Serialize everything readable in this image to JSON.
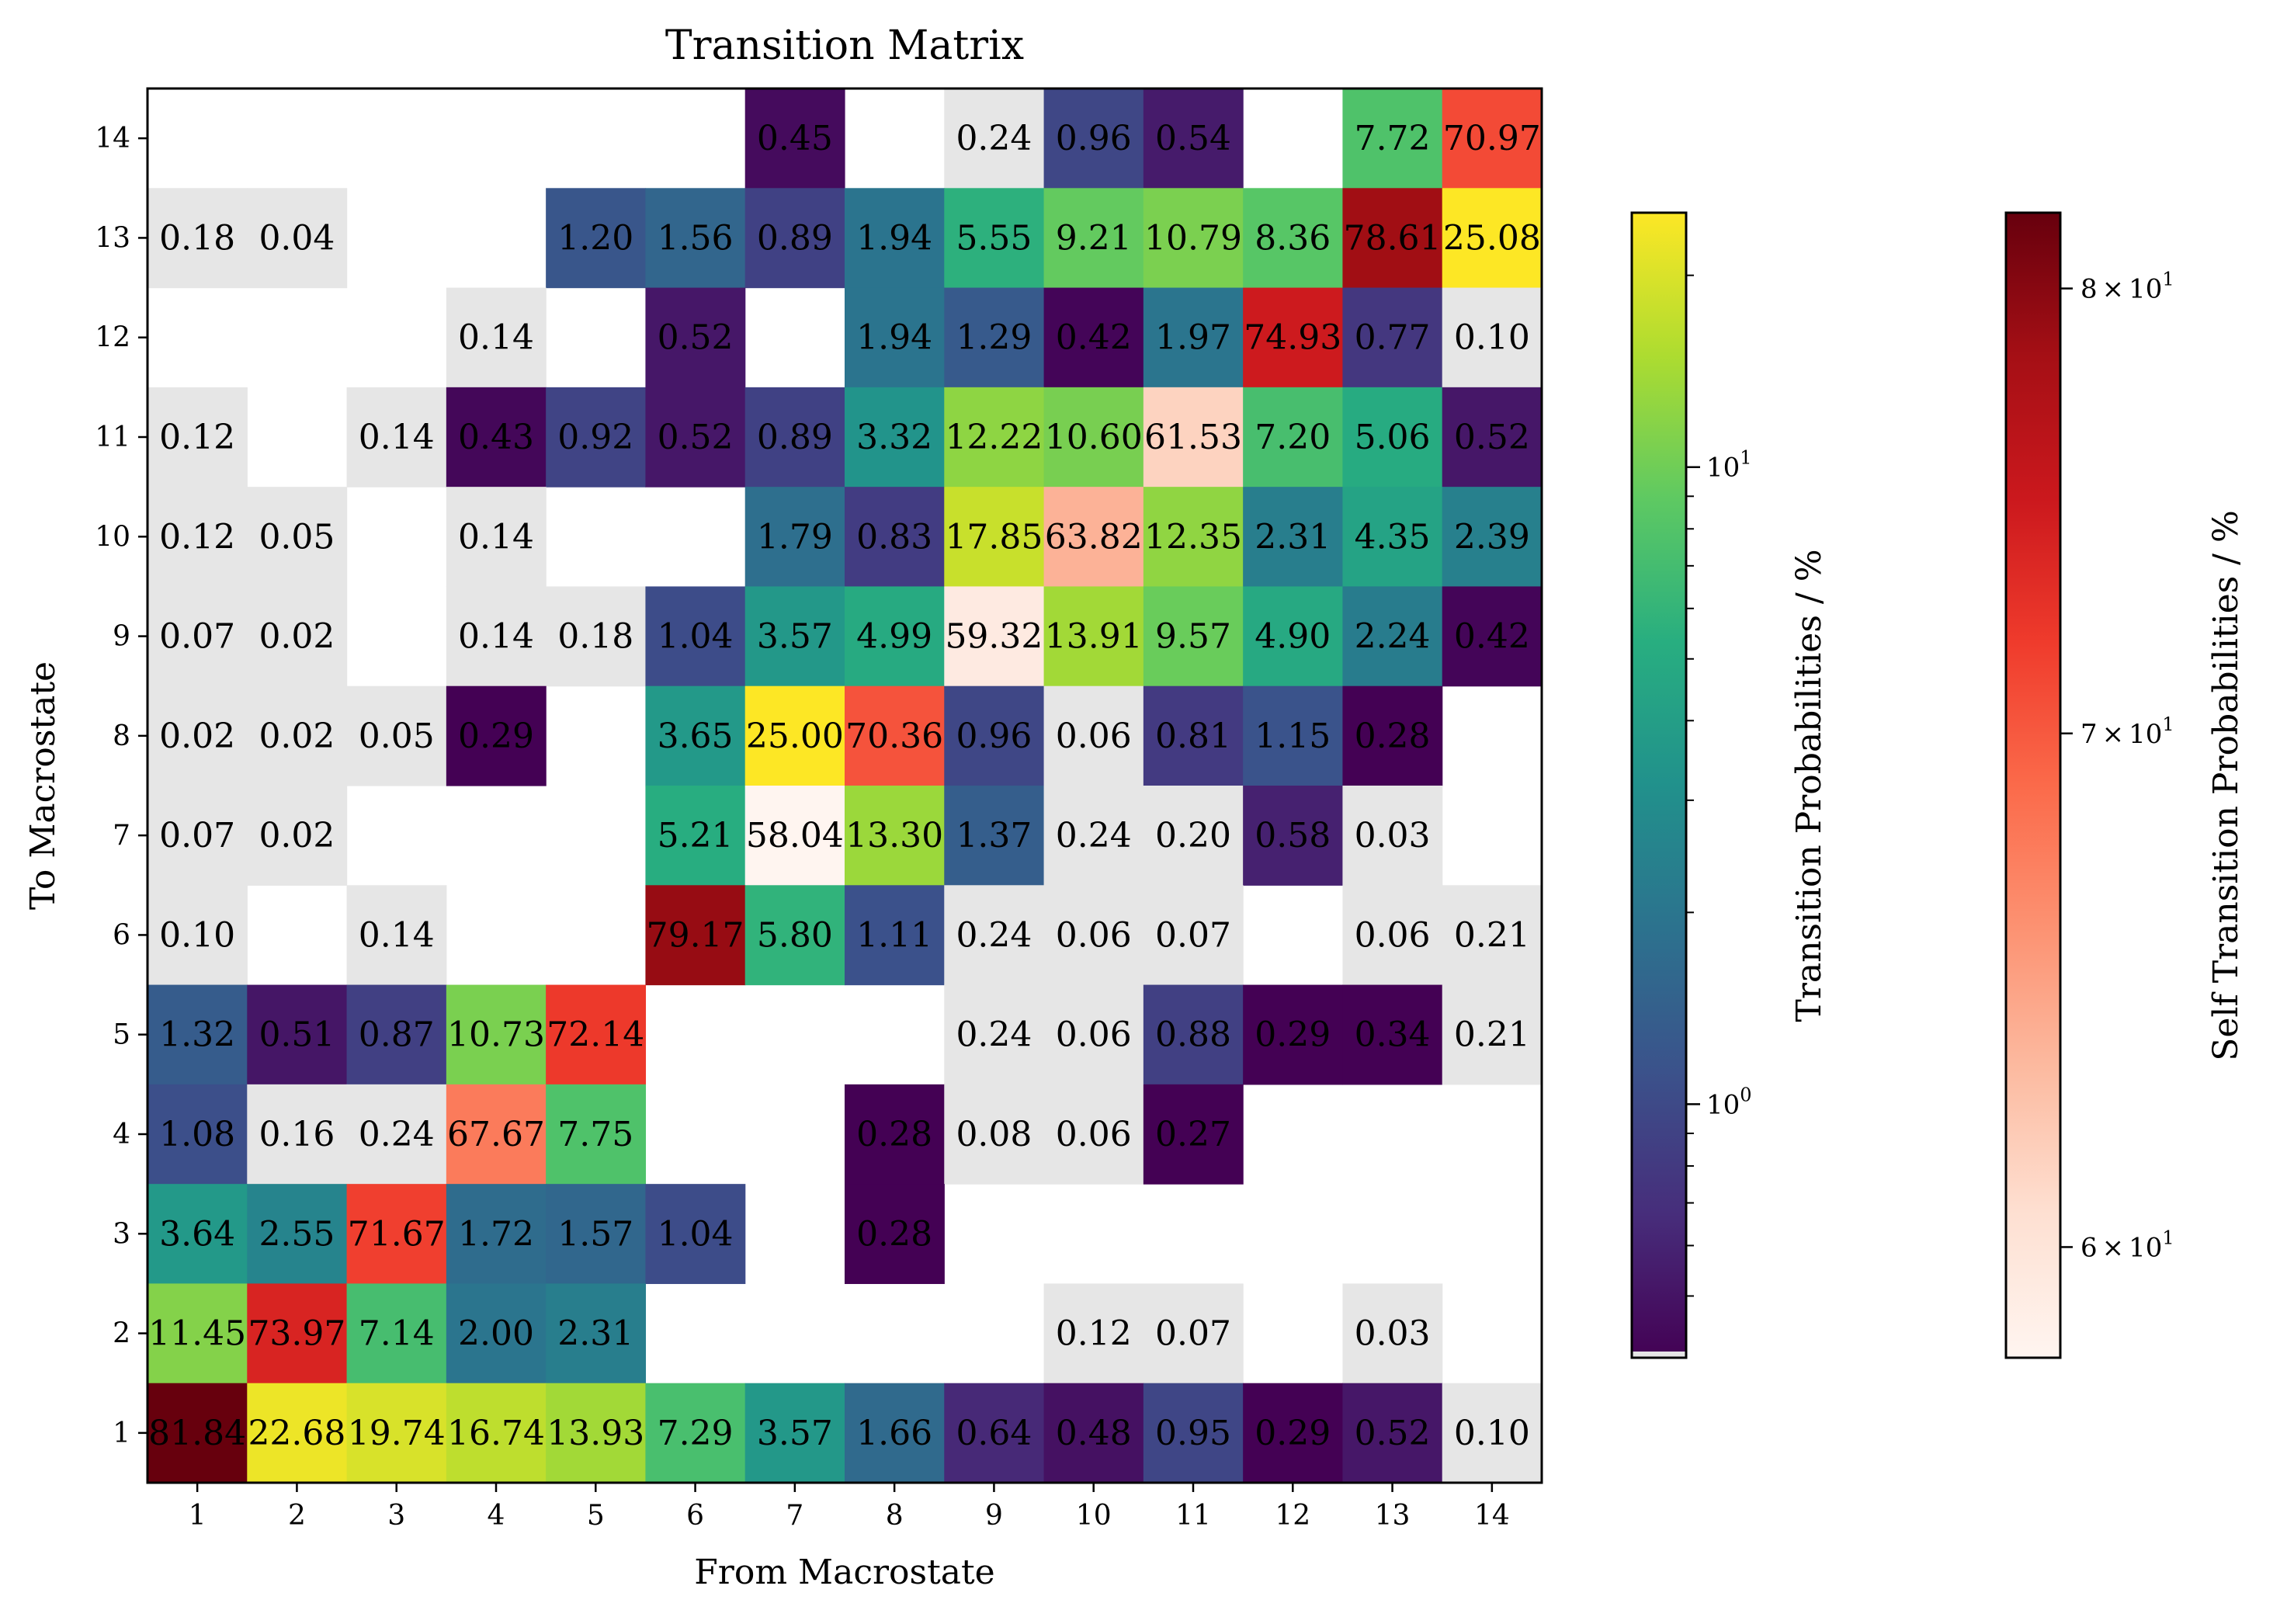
{
  "chart_data": {
    "type": "heatmap",
    "title": "Transition Matrix",
    "xlabel": "From Macrostate",
    "ylabel": "To Macrostate",
    "x_categories": [
      1,
      2,
      3,
      4,
      5,
      6,
      7,
      8,
      9,
      10,
      11,
      12,
      13,
      14
    ],
    "y_categories": [
      1,
      2,
      3,
      4,
      5,
      6,
      7,
      8,
      9,
      10,
      11,
      12,
      13,
      14
    ],
    "cells": [
      {
        "from": 7,
        "to": 14,
        "value": 0.45
      },
      {
        "from": 9,
        "to": 14,
        "value": 0.24
      },
      {
        "from": 10,
        "to": 14,
        "value": 0.96
      },
      {
        "from": 11,
        "to": 14,
        "value": 0.54
      },
      {
        "from": 13,
        "to": 14,
        "value": 7.72
      },
      {
        "from": 14,
        "to": 14,
        "value": 70.97
      },
      {
        "from": 1,
        "to": 13,
        "value": 0.18
      },
      {
        "from": 2,
        "to": 13,
        "value": 0.04
      },
      {
        "from": 5,
        "to": 13,
        "value": 1.2
      },
      {
        "from": 6,
        "to": 13,
        "value": 1.56
      },
      {
        "from": 7,
        "to": 13,
        "value": 0.89
      },
      {
        "from": 8,
        "to": 13,
        "value": 1.94
      },
      {
        "from": 9,
        "to": 13,
        "value": 5.55
      },
      {
        "from": 10,
        "to": 13,
        "value": 9.21
      },
      {
        "from": 11,
        "to": 13,
        "value": 10.79
      },
      {
        "from": 12,
        "to": 13,
        "value": 8.36
      },
      {
        "from": 13,
        "to": 13,
        "value": 78.61
      },
      {
        "from": 14,
        "to": 13,
        "value": 25.08
      },
      {
        "from": 4,
        "to": 12,
        "value": 0.14
      },
      {
        "from": 6,
        "to": 12,
        "value": 0.52
      },
      {
        "from": 8,
        "to": 12,
        "value": 1.94
      },
      {
        "from": 9,
        "to": 12,
        "value": 1.29
      },
      {
        "from": 10,
        "to": 12,
        "value": 0.42
      },
      {
        "from": 11,
        "to": 12,
        "value": 1.97
      },
      {
        "from": 12,
        "to": 12,
        "value": 74.93
      },
      {
        "from": 13,
        "to": 12,
        "value": 0.77
      },
      {
        "from": 14,
        "to": 12,
        "value": 0.1
      },
      {
        "from": 1,
        "to": 11,
        "value": 0.12
      },
      {
        "from": 3,
        "to": 11,
        "value": 0.14
      },
      {
        "from": 4,
        "to": 11,
        "value": 0.43
      },
      {
        "from": 5,
        "to": 11,
        "value": 0.92
      },
      {
        "from": 6,
        "to": 11,
        "value": 0.52
      },
      {
        "from": 7,
        "to": 11,
        "value": 0.89
      },
      {
        "from": 8,
        "to": 11,
        "value": 3.32
      },
      {
        "from": 9,
        "to": 11,
        "value": 12.22
      },
      {
        "from": 10,
        "to": 11,
        "value": 10.6
      },
      {
        "from": 11,
        "to": 11,
        "value": 61.53
      },
      {
        "from": 12,
        "to": 11,
        "value": 7.2
      },
      {
        "from": 13,
        "to": 11,
        "value": 5.06
      },
      {
        "from": 14,
        "to": 11,
        "value": 0.52
      },
      {
        "from": 1,
        "to": 10,
        "value": 0.12
      },
      {
        "from": 2,
        "to": 10,
        "value": 0.05
      },
      {
        "from": 4,
        "to": 10,
        "value": 0.14
      },
      {
        "from": 7,
        "to": 10,
        "value": 1.79
      },
      {
        "from": 8,
        "to": 10,
        "value": 0.83
      },
      {
        "from": 9,
        "to": 10,
        "value": 17.85
      },
      {
        "from": 10,
        "to": 10,
        "value": 63.82
      },
      {
        "from": 11,
        "to": 10,
        "value": 12.35
      },
      {
        "from": 12,
        "to": 10,
        "value": 2.31
      },
      {
        "from": 13,
        "to": 10,
        "value": 4.35
      },
      {
        "from": 14,
        "to": 10,
        "value": 2.39
      },
      {
        "from": 1,
        "to": 9,
        "value": 0.07
      },
      {
        "from": 2,
        "to": 9,
        "value": 0.02
      },
      {
        "from": 4,
        "to": 9,
        "value": 0.14
      },
      {
        "from": 5,
        "to": 9,
        "value": 0.18
      },
      {
        "from": 6,
        "to": 9,
        "value": 1.04
      },
      {
        "from": 7,
        "to": 9,
        "value": 3.57
      },
      {
        "from": 8,
        "to": 9,
        "value": 4.99
      },
      {
        "from": 9,
        "to": 9,
        "value": 59.32
      },
      {
        "from": 10,
        "to": 9,
        "value": 13.91
      },
      {
        "from": 11,
        "to": 9,
        "value": 9.57
      },
      {
        "from": 12,
        "to": 9,
        "value": 4.9
      },
      {
        "from": 13,
        "to": 9,
        "value": 2.24
      },
      {
        "from": 14,
        "to": 9,
        "value": 0.42
      },
      {
        "from": 1,
        "to": 8,
        "value": 0.02
      },
      {
        "from": 2,
        "to": 8,
        "value": 0.02
      },
      {
        "from": 3,
        "to": 8,
        "value": 0.05
      },
      {
        "from": 4,
        "to": 8,
        "value": 0.29
      },
      {
        "from": 6,
        "to": 8,
        "value": 3.65
      },
      {
        "from": 7,
        "to": 8,
        "value": 25.0
      },
      {
        "from": 8,
        "to": 8,
        "value": 70.36
      },
      {
        "from": 9,
        "to": 8,
        "value": 0.96
      },
      {
        "from": 10,
        "to": 8,
        "value": 0.06
      },
      {
        "from": 11,
        "to": 8,
        "value": 0.81
      },
      {
        "from": 12,
        "to": 8,
        "value": 1.15
      },
      {
        "from": 13,
        "to": 8,
        "value": 0.28
      },
      {
        "from": 1,
        "to": 7,
        "value": 0.07
      },
      {
        "from": 2,
        "to": 7,
        "value": 0.02
      },
      {
        "from": 6,
        "to": 7,
        "value": 5.21
      },
      {
        "from": 7,
        "to": 7,
        "value": 58.04
      },
      {
        "from": 8,
        "to": 7,
        "value": 13.3
      },
      {
        "from": 9,
        "to": 7,
        "value": 1.37
      },
      {
        "from": 10,
        "to": 7,
        "value": 0.24
      },
      {
        "from": 11,
        "to": 7,
        "value": 0.2
      },
      {
        "from": 12,
        "to": 7,
        "value": 0.58
      },
      {
        "from": 13,
        "to": 7,
        "value": 0.03
      },
      {
        "from": 1,
        "to": 6,
        "value": 0.1
      },
      {
        "from": 3,
        "to": 6,
        "value": 0.14
      },
      {
        "from": 6,
        "to": 6,
        "value": 79.17
      },
      {
        "from": 7,
        "to": 6,
        "value": 5.8
      },
      {
        "from": 8,
        "to": 6,
        "value": 1.11
      },
      {
        "from": 9,
        "to": 6,
        "value": 0.24
      },
      {
        "from": 10,
        "to": 6,
        "value": 0.06
      },
      {
        "from": 11,
        "to": 6,
        "value": 0.07
      },
      {
        "from": 13,
        "to": 6,
        "value": 0.06
      },
      {
        "from": 14,
        "to": 6,
        "value": 0.21
      },
      {
        "from": 1,
        "to": 5,
        "value": 1.32
      },
      {
        "from": 2,
        "to": 5,
        "value": 0.51
      },
      {
        "from": 3,
        "to": 5,
        "value": 0.87
      },
      {
        "from": 4,
        "to": 5,
        "value": 10.73
      },
      {
        "from": 5,
        "to": 5,
        "value": 72.14
      },
      {
        "from": 9,
        "to": 5,
        "value": 0.24
      },
      {
        "from": 10,
        "to": 5,
        "value": 0.06
      },
      {
        "from": 11,
        "to": 5,
        "value": 0.88
      },
      {
        "from": 12,
        "to": 5,
        "value": 0.29
      },
      {
        "from": 13,
        "to": 5,
        "value": 0.34
      },
      {
        "from": 14,
        "to": 5,
        "value": 0.21
      },
      {
        "from": 1,
        "to": 4,
        "value": 1.08
      },
      {
        "from": 2,
        "to": 4,
        "value": 0.16
      },
      {
        "from": 3,
        "to": 4,
        "value": 0.24
      },
      {
        "from": 4,
        "to": 4,
        "value": 67.67
      },
      {
        "from": 5,
        "to": 4,
        "value": 7.75
      },
      {
        "from": 8,
        "to": 4,
        "value": 0.28
      },
      {
        "from": 9,
        "to": 4,
        "value": 0.08
      },
      {
        "from": 10,
        "to": 4,
        "value": 0.06
      },
      {
        "from": 11,
        "to": 4,
        "value": 0.27
      },
      {
        "from": 1,
        "to": 3,
        "value": 3.64
      },
      {
        "from": 2,
        "to": 3,
        "value": 2.55
      },
      {
        "from": 3,
        "to": 3,
        "value": 71.67
      },
      {
        "from": 4,
        "to": 3,
        "value": 1.72
      },
      {
        "from": 5,
        "to": 3,
        "value": 1.57
      },
      {
        "from": 6,
        "to": 3,
        "value": 1.04
      },
      {
        "from": 8,
        "to": 3,
        "value": 0.28
      },
      {
        "from": 1,
        "to": 2,
        "value": 11.45
      },
      {
        "from": 2,
        "to": 2,
        "value": 73.97
      },
      {
        "from": 3,
        "to": 2,
        "value": 7.14
      },
      {
        "from": 4,
        "to": 2,
        "value": 2.0
      },
      {
        "from": 5,
        "to": 2,
        "value": 2.31
      },
      {
        "from": 10,
        "to": 2,
        "value": 0.12
      },
      {
        "from": 11,
        "to": 2,
        "value": 0.07
      },
      {
        "from": 13,
        "to": 2,
        "value": 0.03
      },
      {
        "from": 1,
        "to": 1,
        "value": 81.84
      },
      {
        "from": 2,
        "to": 1,
        "value": 22.68
      },
      {
        "from": 3,
        "to": 1,
        "value": 19.74
      },
      {
        "from": 4,
        "to": 1,
        "value": 16.74
      },
      {
        "from": 5,
        "to": 1,
        "value": 13.93
      },
      {
        "from": 6,
        "to": 1,
        "value": 7.29
      },
      {
        "from": 7,
        "to": 1,
        "value": 3.57
      },
      {
        "from": 8,
        "to": 1,
        "value": 1.66
      },
      {
        "from": 9,
        "to": 1,
        "value": 0.64
      },
      {
        "from": 10,
        "to": 1,
        "value": 0.48
      },
      {
        "from": 11,
        "to": 1,
        "value": 0.95
      },
      {
        "from": 12,
        "to": 1,
        "value": 0.29
      },
      {
        "from": 13,
        "to": 1,
        "value": 0.52
      },
      {
        "from": 14,
        "to": 1,
        "value": 0.1
      }
    ],
    "low_value_threshold": 0.25,
    "low_value_color": "#e6e6e6",
    "colorbars": [
      {
        "label": "Transition Probabilities / %",
        "colormap": "viridis",
        "scale": "log",
        "range": [
          0.4,
          25.08
        ],
        "major_ticks": [
          {
            "value": 1,
            "base": "10",
            "exp": "0"
          },
          {
            "value": 10,
            "base": "10",
            "exp": "1"
          }
        ]
      },
      {
        "label": "Self Transition Probabilities / %",
        "colormap": "Reds",
        "scale": "log",
        "range": [
          58.04,
          81.84
        ],
        "major_ticks": [
          {
            "value": 60,
            "mant": "6",
            "base": "10",
            "exp": "1"
          },
          {
            "value": 70,
            "mant": "7",
            "base": "10",
            "exp": "1"
          },
          {
            "value": 80,
            "mant": "8",
            "base": "10",
            "exp": "1"
          }
        ]
      }
    ]
  }
}
